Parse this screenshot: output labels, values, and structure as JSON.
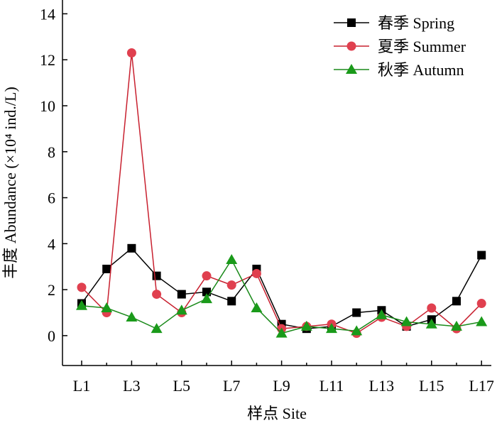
{
  "chart_data": {
    "type": "line",
    "xlabel": "样点 Site",
    "ylabel": "丰度 Abundance (×10⁴ ind./L)",
    "categories": [
      "L1",
      "L2",
      "L3",
      "L4",
      "L5",
      "L6",
      "L7",
      "L8",
      "L9",
      "L10",
      "L11",
      "L12",
      "L13",
      "L14",
      "L15",
      "L16",
      "L17"
    ],
    "x_tick_labels": [
      "L1",
      "L3",
      "L5",
      "L7",
      "L9",
      "L11",
      "L13",
      "L15",
      "L17"
    ],
    "y_tick_labels": [
      "0",
      "2",
      "4",
      "6",
      "8",
      "10",
      "12",
      "14"
    ],
    "ylim": [
      -1.3,
      14.6
    ],
    "y_ticks": [
      0,
      2,
      4,
      6,
      8,
      10,
      12,
      14
    ],
    "grid": false,
    "legend_position": "top-right",
    "series": [
      {
        "name": "春季 Spring",
        "marker": "square",
        "color": "#000000",
        "line_color": "#000000",
        "values": [
          1.4,
          2.9,
          3.8,
          2.6,
          1.8,
          1.9,
          1.5,
          2.9,
          0.5,
          0.3,
          0.4,
          1.0,
          1.1,
          0.4,
          0.7,
          1.5,
          3.5
        ]
      },
      {
        "name": "夏季 Summer",
        "marker": "circle",
        "color": "#e0404f",
        "line_color": "#c8202f",
        "values": [
          2.1,
          1.0,
          12.3,
          1.8,
          1.0,
          2.6,
          2.2,
          2.7,
          0.3,
          0.4,
          0.5,
          0.1,
          0.8,
          0.4,
          1.2,
          0.3,
          1.4
        ]
      },
      {
        "name": "秋季 Autumn",
        "marker": "triangle",
        "color": "#1a9a1a",
        "line_color": "#1a8a1a",
        "values": [
          1.3,
          1.2,
          0.8,
          0.3,
          1.1,
          1.6,
          3.3,
          1.2,
          0.1,
          0.4,
          0.3,
          0.2,
          0.9,
          0.6,
          0.5,
          0.4,
          0.6
        ]
      }
    ]
  }
}
